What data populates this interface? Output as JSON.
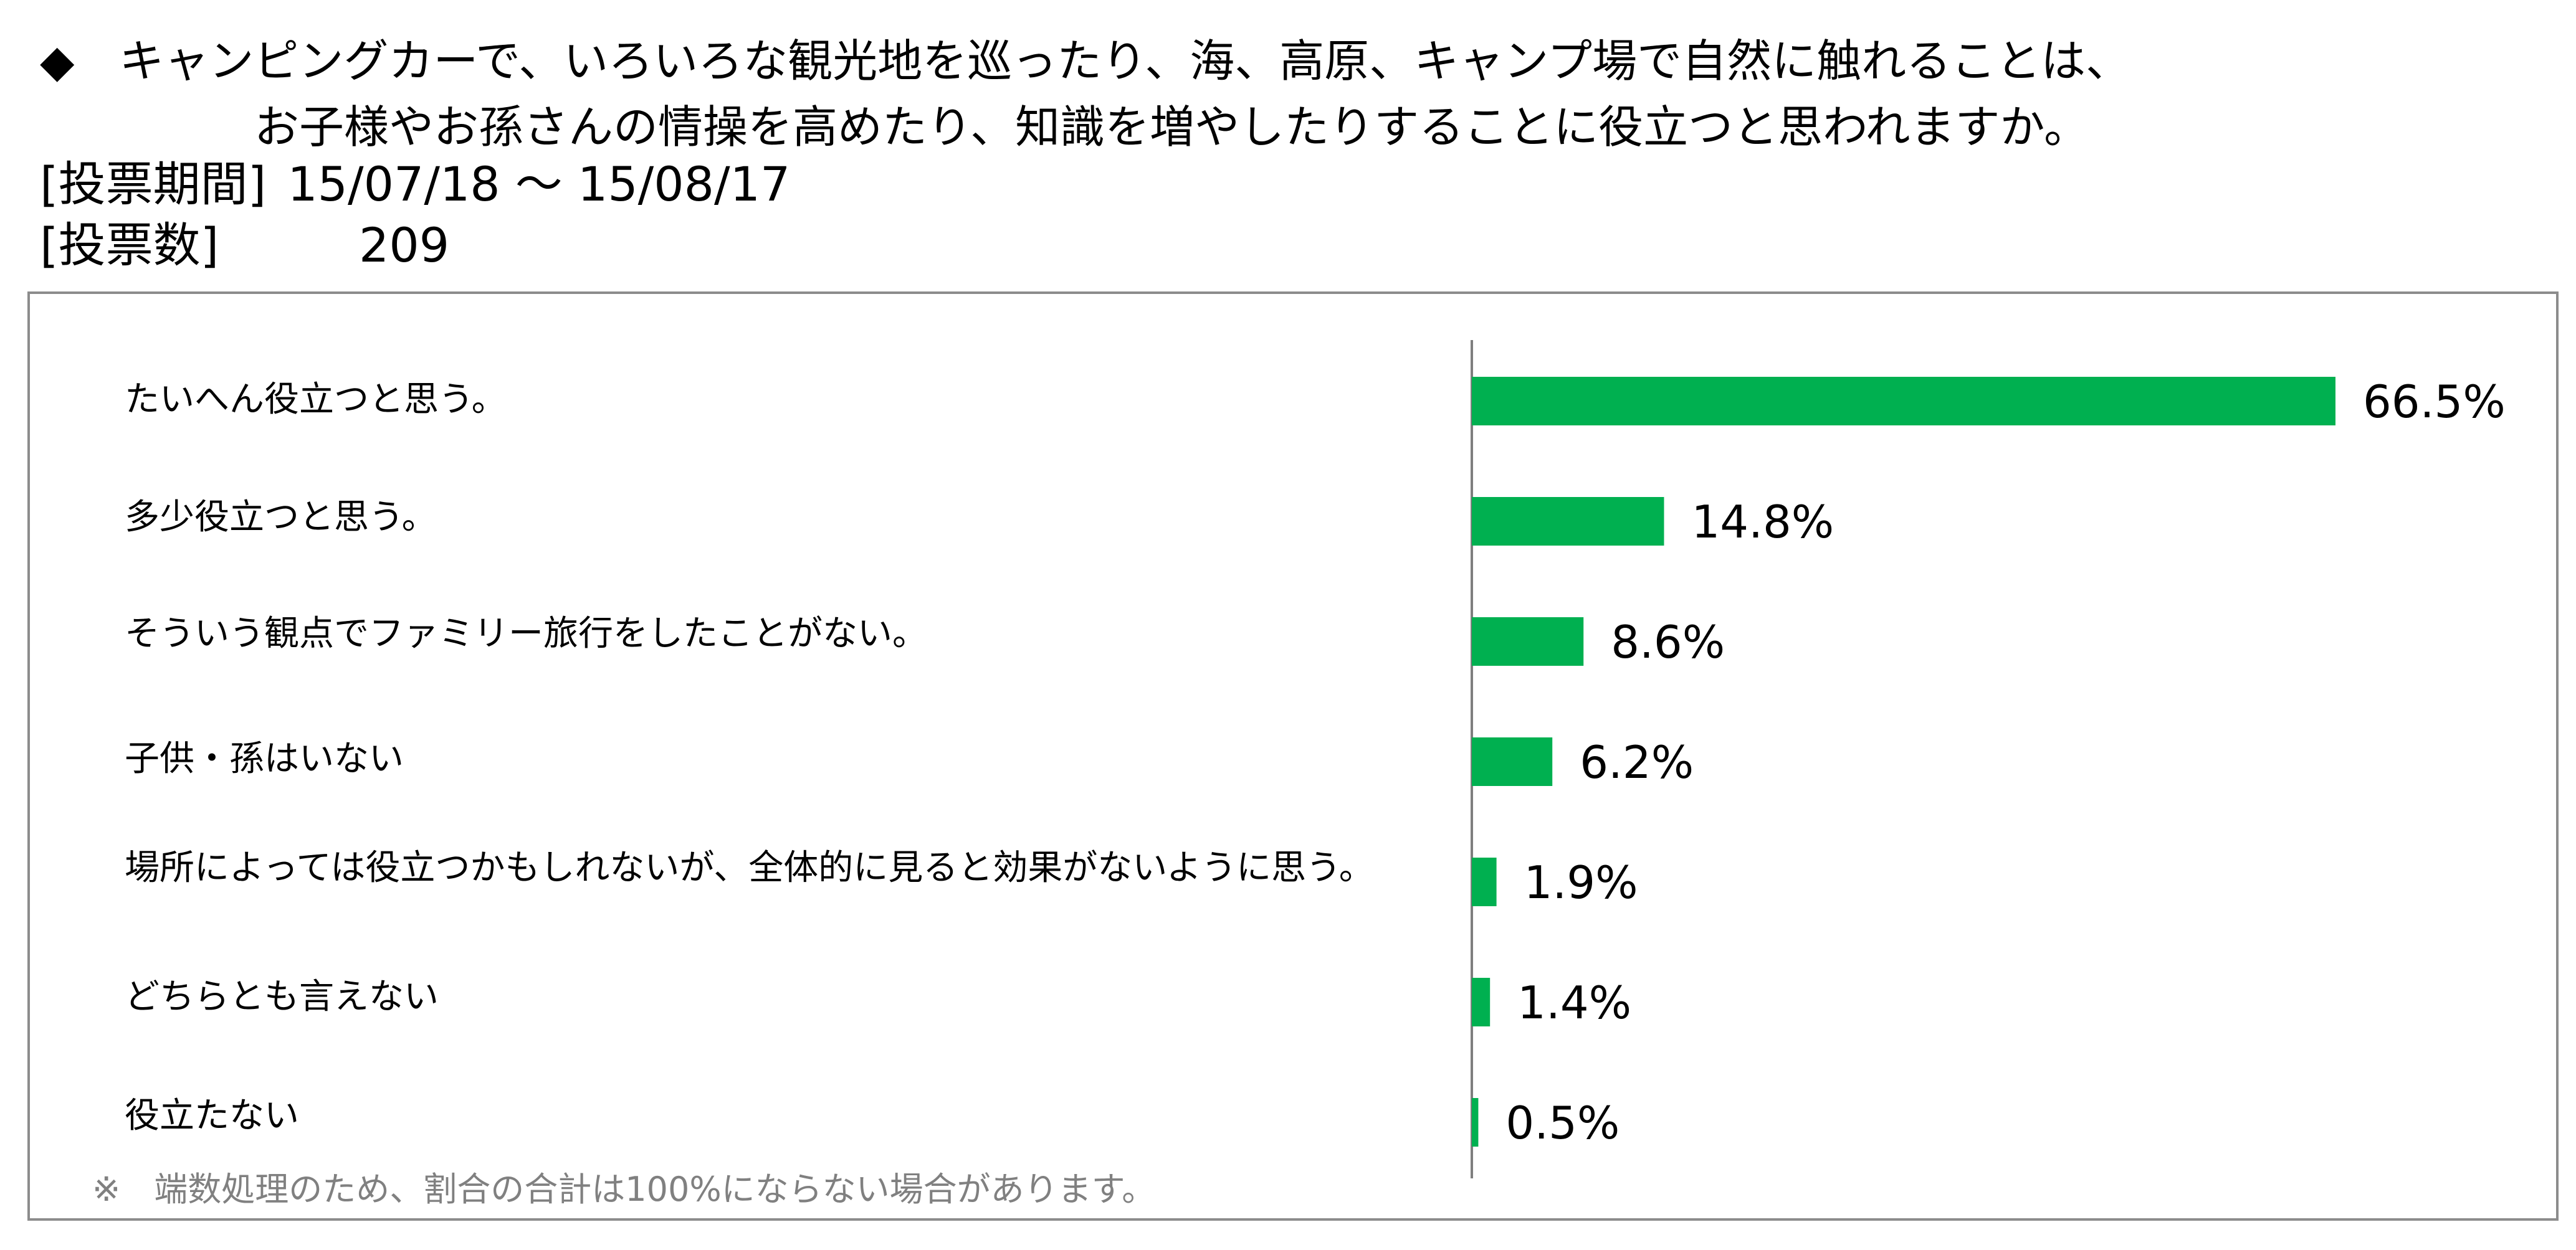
{
  "question": {
    "bullet": "◆",
    "line1": "キャンピングカーで、いろいろな観光地を巡ったり、海、高原、キャンプ場で自然に触れることは、",
    "line2": "お子様やお孫さんの情操を高めたり、知識を増やしたりすることに役立つと思われますか。"
  },
  "meta": {
    "period_label": "[投票期間]",
    "period_value": "15/07/18 ～ 15/08/17",
    "votes_label": "[投票数]",
    "votes_value": "209"
  },
  "footnote": "※　端数処理のため、割合の合計は100%にならない場合があります。",
  "colors": {
    "bar": "#00b050",
    "axis": "#7f7f7f",
    "frame": "#8c8c8c",
    "footnote": "#808080"
  },
  "chart_data": {
    "type": "bar",
    "orientation": "horizontal",
    "categories": [
      "たいへん役立つと思う。",
      "多少役立つと思う。",
      "そういう観点でファミリー旅行をしたことがない。",
      "子供・孫はいない",
      "場所によっては役立つかもしれないが、全体的に見ると効果がないように思う。",
      "どちらとも言えない",
      "役立たない"
    ],
    "values": [
      66.5,
      14.8,
      8.6,
      6.2,
      1.9,
      1.4,
      0.5
    ],
    "value_labels": [
      "66.5%",
      "14.8%",
      "8.6%",
      "6.2%",
      "1.9%",
      "1.4%",
      "0.5%"
    ],
    "unit": "%",
    "xlim": [
      0,
      66.5
    ],
    "grid": false,
    "legend": "none"
  }
}
